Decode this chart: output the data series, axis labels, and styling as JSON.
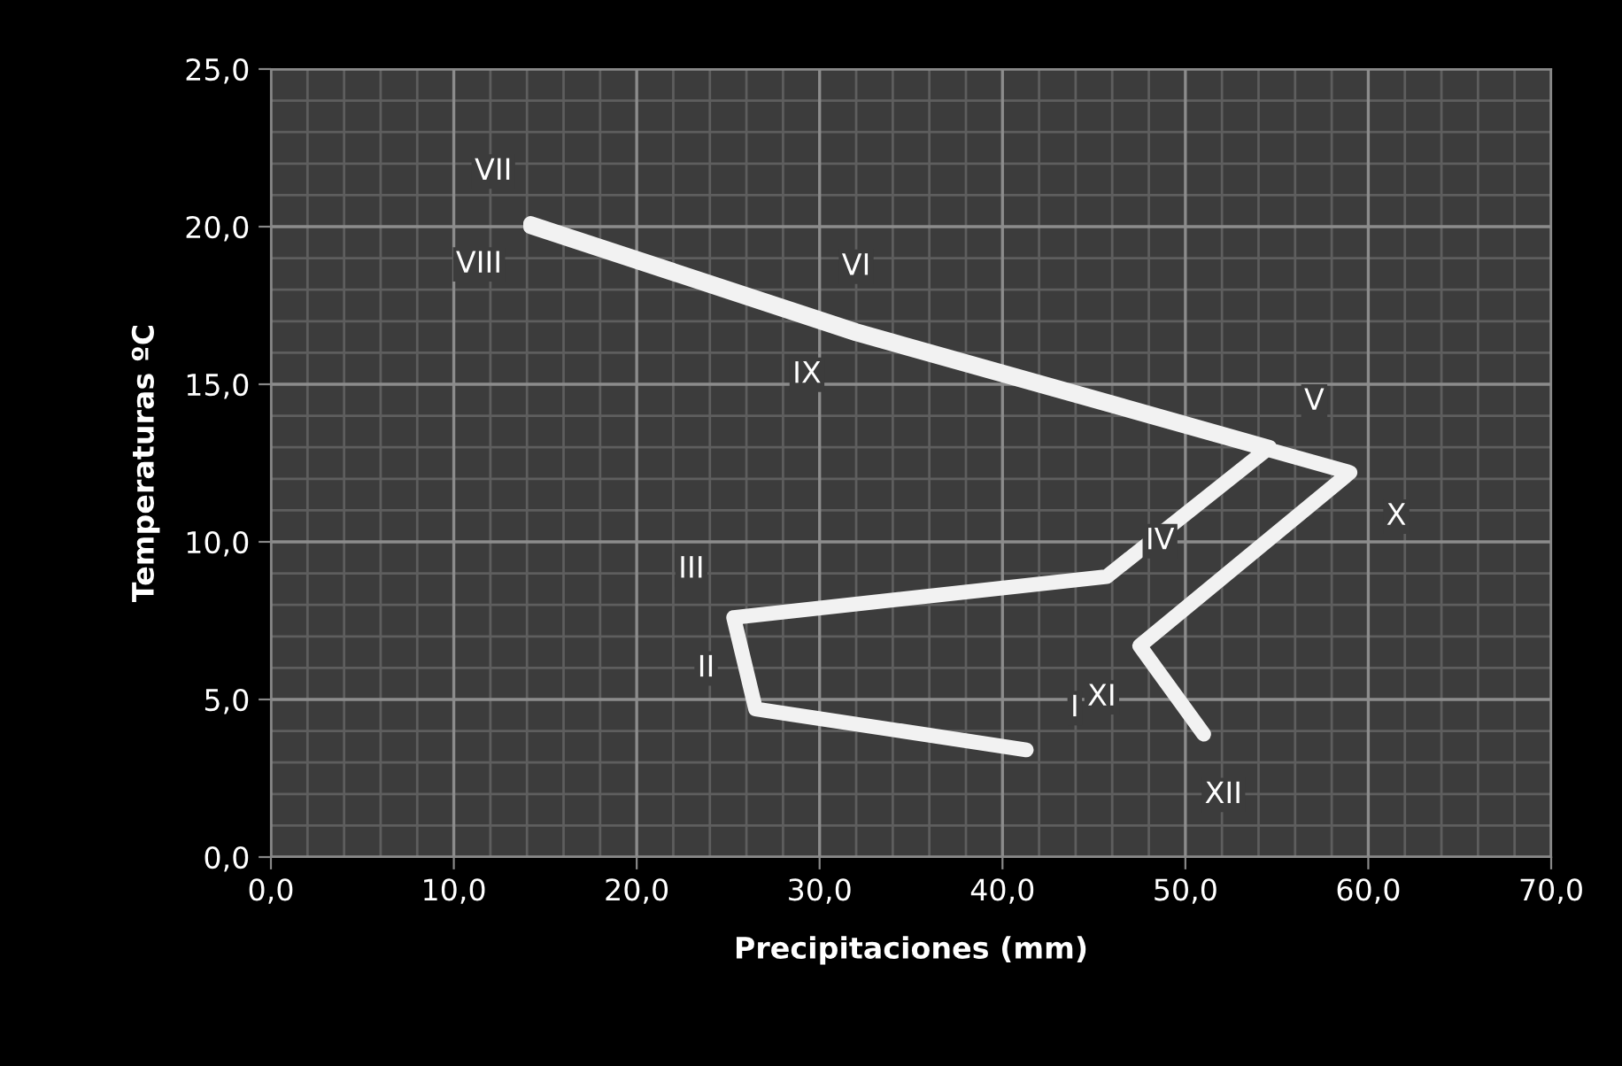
{
  "chart_data": {
    "type": "line",
    "xlabel": "Precipitaciones (mm)",
    "ylabel": "Temperaturas ºC",
    "series": [
      {
        "color": "#f2f2f2",
        "x": [
          41.3,
          26.5,
          25.3,
          45.7,
          54.6,
          32.0,
          14.2,
          14.2,
          32.0,
          59.0,
          47.5,
          51.0
        ],
        "values": [
          3.4,
          4.7,
          7.6,
          8.9,
          13.0,
          16.7,
          20.1,
          20.0,
          16.6,
          12.2,
          6.7,
          3.9
        ],
        "value_labels": [
          "I",
          "II",
          "III",
          "IV",
          "V",
          "VI",
          "VII",
          "VIII",
          "IX",
          "X",
          "XI",
          "XII"
        ]
      }
    ],
    "xlim": [
      0,
      70
    ],
    "ylim": [
      0,
      25
    ],
    "xticks": [
      {
        "value": 0,
        "label": "0,0"
      },
      {
        "value": 10,
        "label": "10,0"
      },
      {
        "value": 20,
        "label": "20,0"
      },
      {
        "value": 30,
        "label": "30,0"
      },
      {
        "value": 40,
        "label": "40,0"
      },
      {
        "value": 50,
        "label": "50,0"
      },
      {
        "value": 60,
        "label": "60,0"
      },
      {
        "value": 70,
        "label": "70,0"
      }
    ],
    "yticks": [
      {
        "value": 0,
        "label": "0,0"
      },
      {
        "value": 5,
        "label": "5,0"
      },
      {
        "value": 10,
        "label": "10,0"
      },
      {
        "value": 15,
        "label": "15,0"
      },
      {
        "value": 20,
        "label": "20,0"
      },
      {
        "value": 25,
        "label": "25,0"
      }
    ],
    "grid": true,
    "marker": "none",
    "line_style": "solid"
  }
}
